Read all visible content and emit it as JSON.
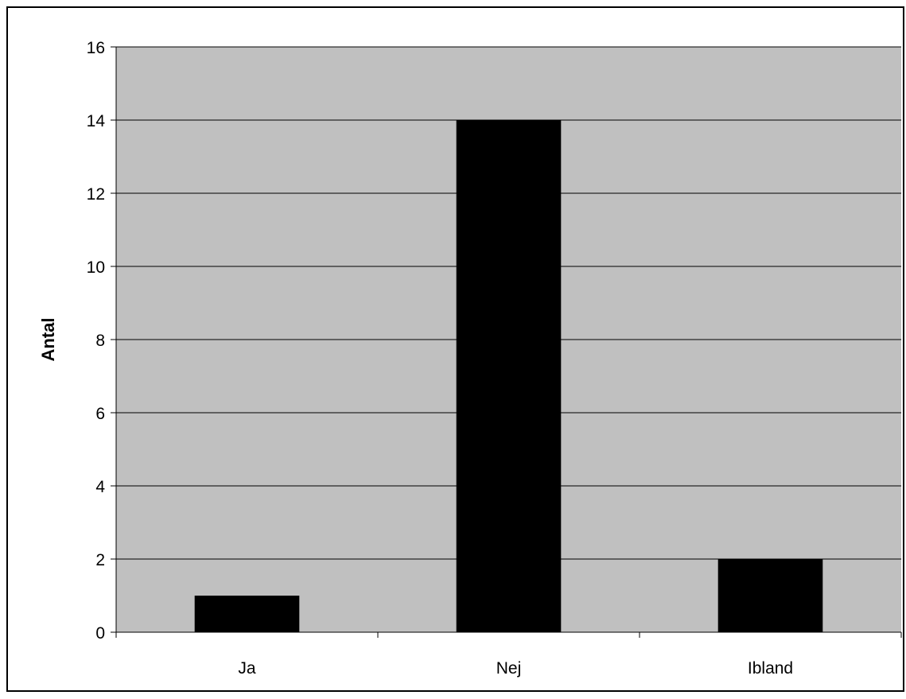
{
  "chart_data": {
    "type": "bar",
    "categories": [
      "Ja",
      "Nej",
      "Ibland"
    ],
    "values": [
      1,
      14,
      2
    ],
    "title": "",
    "xlabel": "",
    "ylabel": "Antal",
    "ylim": [
      0,
      16
    ],
    "yticks": [
      0,
      2,
      4,
      6,
      8,
      10,
      12,
      14,
      16
    ],
    "grid": true,
    "legend": "none",
    "colors": {
      "plot_background": "#c0c0c0",
      "bar": "#000000",
      "gridline": "#000000",
      "frame": "#000000"
    }
  }
}
